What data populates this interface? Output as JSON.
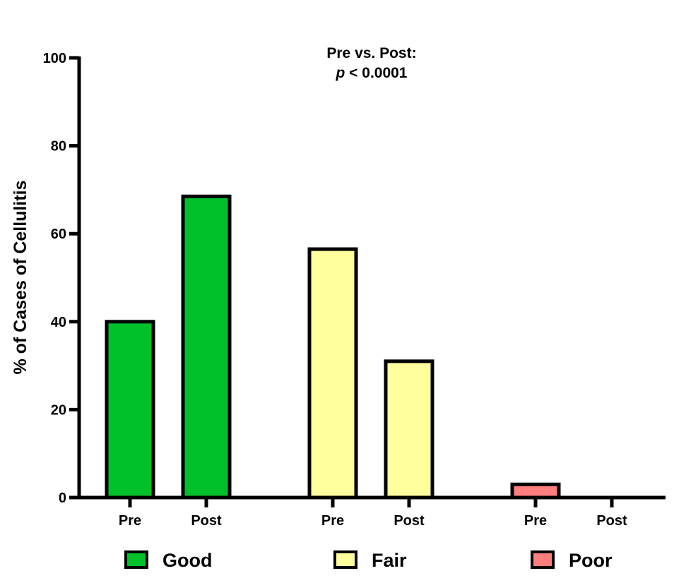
{
  "chart_data": {
    "type": "bar",
    "title": "",
    "annotation": {
      "line1": "Pre vs. Post:",
      "p_symbol": "p",
      "p_rest": " < 0.0001"
    },
    "ylabel": "% of Cases of Cellulitis",
    "xlabel": "",
    "ylim": [
      0,
      100
    ],
    "yticks": [
      0,
      20,
      40,
      60,
      80,
      100
    ],
    "grid": false,
    "legend_placement": "bottom",
    "groups": [
      {
        "name": "Good",
        "color": "#00c12a",
        "bars": [
          {
            "label": "Pre",
            "value": 40
          },
          {
            "label": "Post",
            "value": 68.5
          }
        ]
      },
      {
        "name": "Fair",
        "color": "#ffff9e",
        "bars": [
          {
            "label": "Pre",
            "value": 56.5
          },
          {
            "label": "Post",
            "value": 31
          }
        ]
      },
      {
        "name": "Poor",
        "color": "#ff7f7f",
        "bars": [
          {
            "label": "Pre",
            "value": 3
          },
          {
            "label": "Post",
            "value": 0
          }
        ]
      }
    ]
  }
}
